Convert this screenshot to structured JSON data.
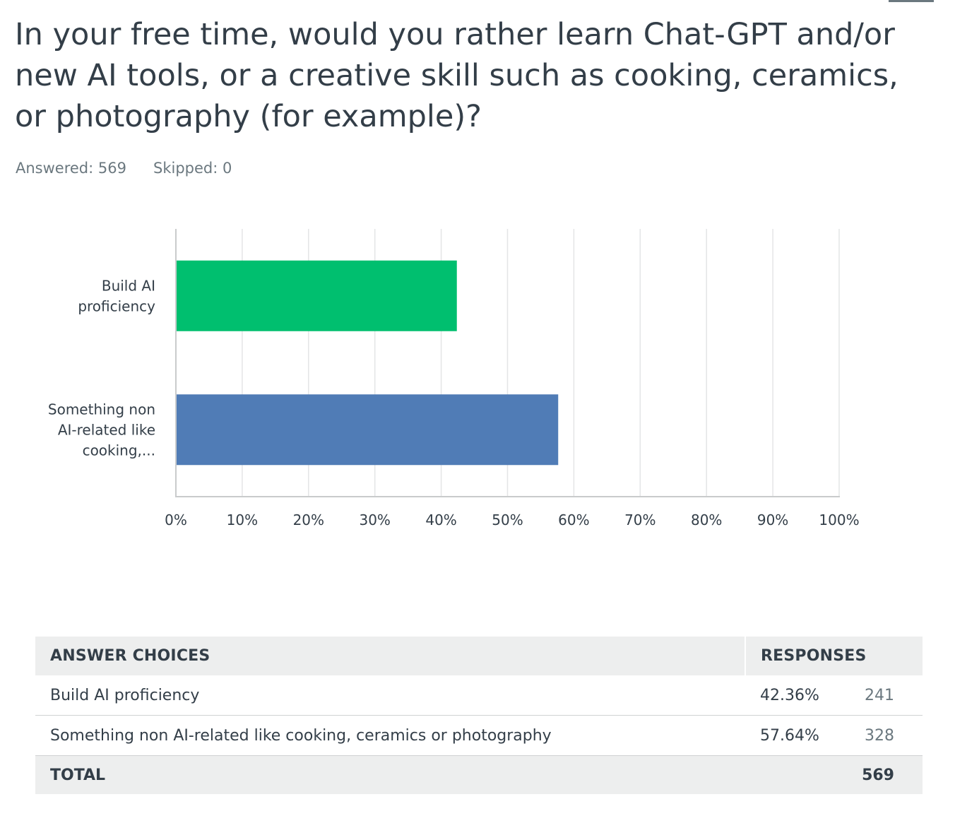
{
  "question": {
    "title": "In your free time, would you rather learn Chat-GPT and/or new AI tools, or a creative skill such as cooking, ceramics, or photography (for example)?"
  },
  "summary": {
    "answered_label": "Answered:",
    "answered_value": "569",
    "skipped_label": "Skipped:",
    "skipped_value": "0"
  },
  "chart_data": {
    "type": "bar",
    "orientation": "horizontal",
    "categories": [
      [
        "Build AI",
        "proficiency"
      ],
      [
        "Something non",
        "AI-related like",
        "cooking,..."
      ]
    ],
    "values": [
      42.36,
      57.64
    ],
    "colors": [
      "#00bf6f",
      "#507cb6"
    ],
    "xlim": [
      0,
      100
    ],
    "xticks": [
      "0%",
      "10%",
      "20%",
      "30%",
      "40%",
      "50%",
      "60%",
      "70%",
      "80%",
      "90%",
      "100%"
    ],
    "grid": true
  },
  "table": {
    "headers": {
      "choices": "ANSWER CHOICES",
      "responses": "RESPONSES"
    },
    "rows": [
      {
        "choice": "Build AI proficiency",
        "percent": "42.36%",
        "count": "241"
      },
      {
        "choice": "Something non AI-related like cooking, ceramics or photography",
        "percent": "57.64%",
        "count": "328"
      }
    ],
    "total": {
      "label": "TOTAL",
      "count": "569"
    }
  }
}
